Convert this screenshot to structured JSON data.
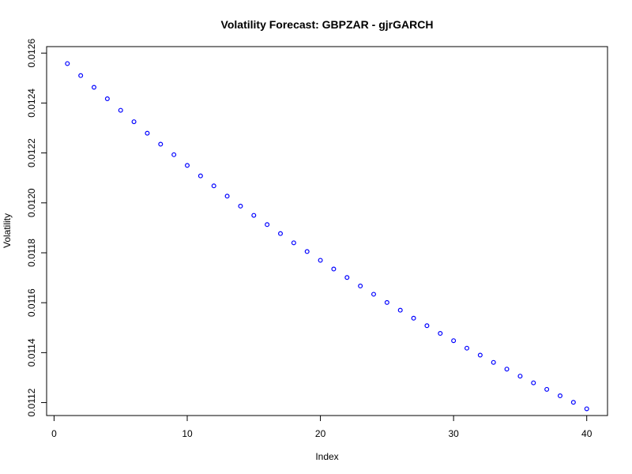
{
  "chart_data": {
    "type": "scatter",
    "title": "Volatility Forecast: GBPZAR - gjrGARCH",
    "xlabel": "Index",
    "ylabel": "Volatility",
    "x_ticks": [
      0,
      10,
      20,
      30,
      40
    ],
    "y_ticks": [
      0.0112,
      0.0114,
      0.0116,
      0.0118,
      0.012,
      0.0122,
      0.0124,
      0.0126
    ],
    "x_tick_labels": [
      "0",
      "10",
      "20",
      "30",
      "40"
    ],
    "y_tick_labels": [
      "0.0112",
      "0.0114",
      "0.0116",
      "0.0118",
      "0.0120",
      "0.0122",
      "0.0124",
      "0.0126"
    ],
    "xlim": [
      -0.56,
      41.56
    ],
    "ylim": [
      0.011148,
      0.012626
    ],
    "grid": false,
    "point_color": "#0000ff",
    "series": [
      {
        "x": [
          1,
          2,
          3,
          4,
          5,
          6,
          7,
          8,
          9,
          10,
          11,
          12,
          13,
          14,
          15,
          16,
          17,
          18,
          19,
          20,
          21,
          22,
          23,
          24,
          25,
          26,
          27,
          28,
          29,
          30,
          31,
          32,
          33,
          34,
          35,
          36,
          37,
          38,
          39,
          40
        ],
        "values": [
          0.012558,
          0.01251,
          0.012463,
          0.012417,
          0.012371,
          0.012325,
          0.012279,
          0.012235,
          0.012193,
          0.01215,
          0.012108,
          0.012068,
          0.012027,
          0.011987,
          0.01195,
          0.011913,
          0.011877,
          0.01184,
          0.011805,
          0.01177,
          0.011735,
          0.011701,
          0.011667,
          0.011634,
          0.011601,
          0.01157,
          0.011538,
          0.011508,
          0.011477,
          0.011448,
          0.011418,
          0.01139,
          0.011361,
          0.011334,
          0.011306,
          0.011279,
          0.011253,
          0.011227,
          0.011201,
          0.011175
        ]
      }
    ]
  }
}
